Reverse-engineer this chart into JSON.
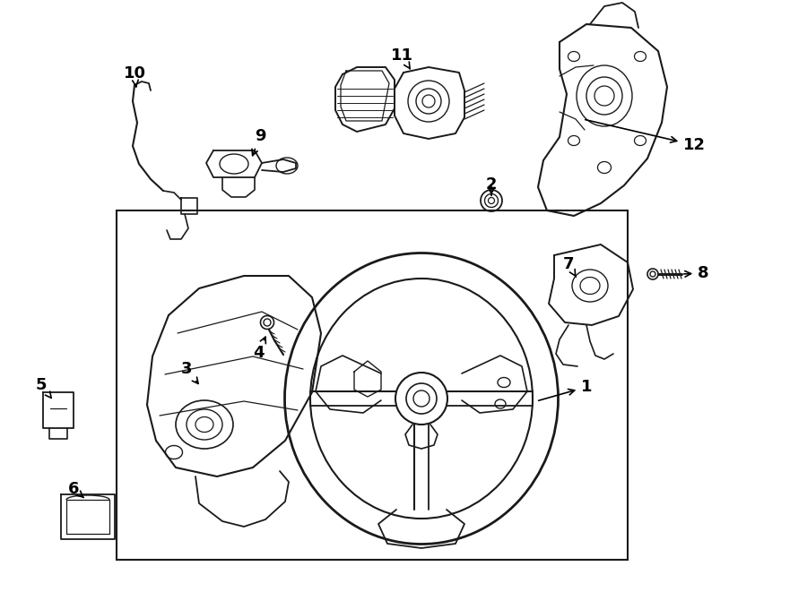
{
  "bg_color": "#ffffff",
  "line_color": "#1a1a1a",
  "label_color": "#000000",
  "fig_width": 9.0,
  "fig_height": 6.61
}
